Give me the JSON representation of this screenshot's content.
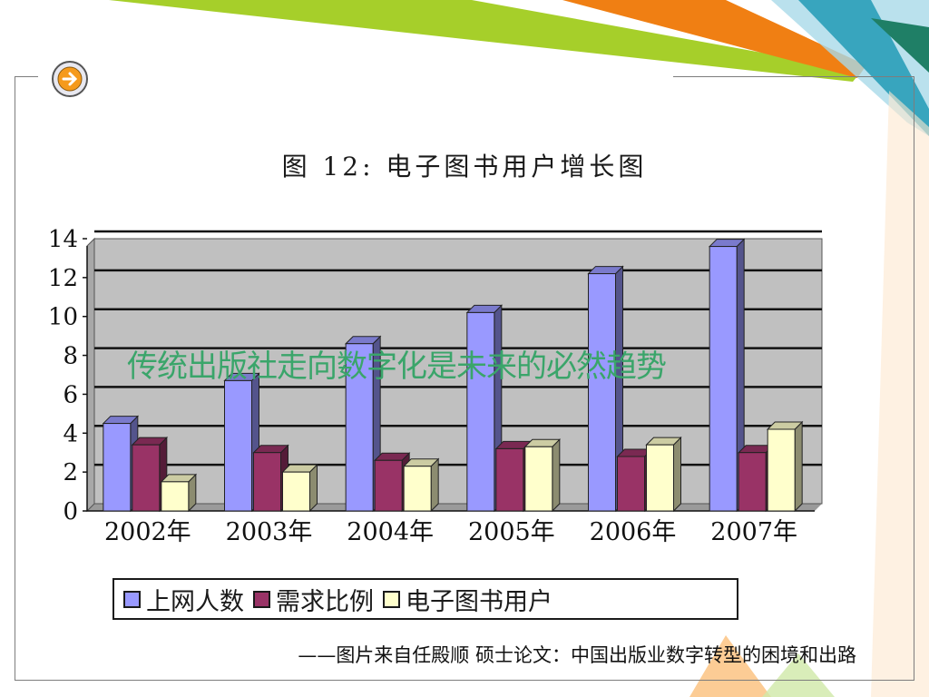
{
  "slide": {
    "overlay_text": "传统出版社走向数字化是未来的必然趋势",
    "caption": "——图片来自任殿顺 硕士论文：中国出版业数字转型的困境和出路",
    "nav_icon": "arrow-right-icon"
  },
  "colors": {
    "accent_green": "#a6cf2a",
    "accent_orange": "#f07f13",
    "accent_teal": "#2a9fb8",
    "accent_light_blue": "#a9d9e8",
    "plot_bg": "#c0c0c0",
    "series_blue": "#9999ff",
    "series_maroon": "#993366",
    "series_cream": "#ffffcc"
  },
  "chart_data": {
    "type": "bar",
    "title": "图 12:  电子图书用户增长图",
    "categories": [
      "2002年",
      "2003年",
      "2004年",
      "2005年",
      "2006年",
      "2007年"
    ],
    "series": [
      {
        "name": "上网人数",
        "values": [
          4.5,
          6.7,
          8.6,
          10.2,
          12.2,
          13.6
        ],
        "color": "#9999ff"
      },
      {
        "name": "需求比例",
        "values": [
          3.4,
          3.0,
          2.6,
          3.2,
          2.8,
          3.0
        ],
        "color": "#993366"
      },
      {
        "name": "电子图书用户",
        "values": [
          1.5,
          2.0,
          2.3,
          3.3,
          3.4,
          4.2
        ],
        "color": "#ffffcc"
      }
    ],
    "yticks": [
      "0",
      "2",
      "4",
      "6",
      "8",
      "10",
      "12",
      "14"
    ],
    "ylim": [
      0,
      14
    ],
    "grid": true,
    "legend": "bottom"
  }
}
